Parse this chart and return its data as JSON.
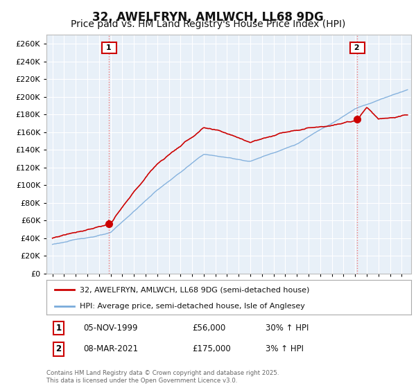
{
  "title": "32, AWELFRYN, AMLWCH, LL68 9DG",
  "subtitle": "Price paid vs. HM Land Registry's House Price Index (HPI)",
  "title_fontsize": 12,
  "subtitle_fontsize": 10,
  "ylabel_ticks": [
    0,
    20000,
    40000,
    60000,
    80000,
    100000,
    120000,
    140000,
    160000,
    180000,
    200000,
    220000,
    240000,
    260000
  ],
  "ylim": [
    0,
    270000
  ],
  "background_color": "#ffffff",
  "chart_bg_color": "#e8f0f8",
  "grid_color": "#ffffff",
  "legend_label_red": "32, AWELFRYN, AMLWCH, LL68 9DG (semi-detached house)",
  "legend_label_blue": "HPI: Average price, semi-detached house, Isle of Anglesey",
  "purchase1_date": "05-NOV-1999",
  "purchase1_price": 56000,
  "purchase1_label": "30% ↑ HPI",
  "purchase1_num": "1",
  "purchase2_date": "08-MAR-2021",
  "purchase2_price": 175000,
  "purchase2_label": "3% ↑ HPI",
  "purchase2_num": "2",
  "footnote": "Contains HM Land Registry data © Crown copyright and database right 2025.\nThis data is licensed under the Open Government Licence v3.0.",
  "red_color": "#cc0000",
  "blue_color": "#7aabdb",
  "vline_color": "#ee6666",
  "marker_color": "#cc0000",
  "purchase1_x": 1999.85,
  "purchase2_x": 2021.18,
  "xmin": 1994.5,
  "xmax": 2025.8
}
